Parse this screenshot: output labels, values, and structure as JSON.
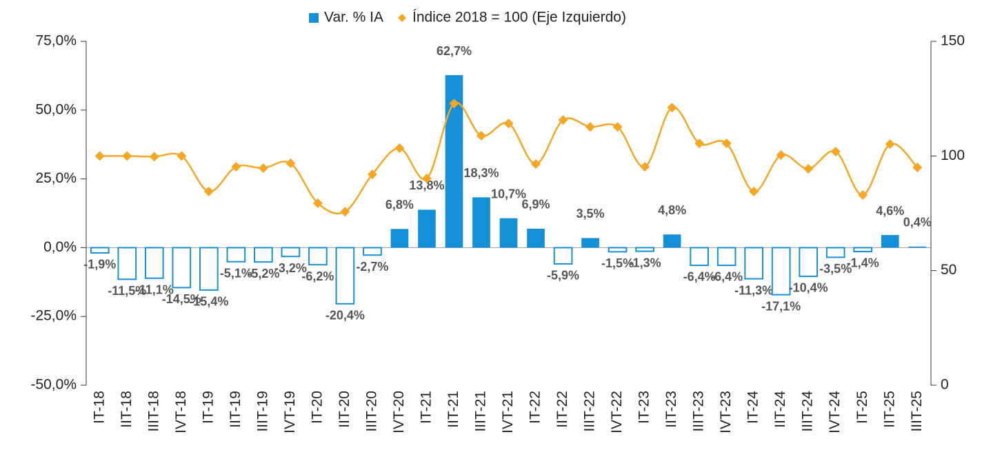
{
  "chart_data": {
    "type": "bar_line",
    "categories": [
      "IT-18",
      "IIT-18",
      "IIIT-18",
      "IVT-18",
      "IT-19",
      "IIT-19",
      "IIIT-19",
      "IVT-19",
      "IT-20",
      "IIT-20",
      "IIIT-20",
      "IVT-20",
      "IT-21",
      "IIT-21",
      "IIIT-21",
      "IVT-21",
      "IT-22",
      "IIT-22",
      "IIIT-22",
      "IVT-22",
      "IT-23",
      "IIT-23",
      "IIIT-23",
      "IVT-23",
      "IT-24",
      "IIT-24",
      "IIIT-24",
      "IVT-24",
      "IT-25",
      "IIT-25",
      "IIIT-25"
    ],
    "series": [
      {
        "name": "Var. % IA",
        "color": "#1590d8",
        "type": "bar",
        "values": [
          -1.9,
          -11.5,
          -11.1,
          -14.5,
          -15.4,
          -5.1,
          -5.2,
          -3.2,
          -6.2,
          -20.4,
          -2.7,
          6.8,
          13.8,
          62.7,
          18.3,
          10.7,
          6.9,
          -5.9,
          3.5,
          -1.5,
          -1.3,
          4.8,
          -6.4,
          -6.4,
          -11.3,
          -17.1,
          -10.4,
          -3.5,
          -1.4,
          4.6,
          0.4
        ],
        "value_labels": [
          "-1,9%",
          "-11,5%",
          "-11,1%",
          "-14,5%",
          "-15,4%",
          "-5,1%",
          "-5,2%",
          "-3,2%",
          "-6,2%",
          "-20,4%",
          "-2,7%",
          "6,8%",
          "13,8%",
          "62,7%",
          "18,3%",
          "10,7%",
          "6,9%",
          "-5,9%",
          "3,5%",
          "-1,5%",
          "-1,3%",
          "4,8%",
          "-6,4%",
          "-6,4%",
          "-11,3%",
          "-17,1%",
          "-10,4%",
          "-3,5%",
          "-1,4%",
          "4,6%",
          "0,4%"
        ]
      },
      {
        "name": "Índice 2018 = 100 (Eje Izquierdo)",
        "color": "#f5a623",
        "type": "line",
        "axis": "y2",
        "values": [
          100,
          100,
          99.7,
          100,
          84.5,
          95.3,
          94.7,
          96.8,
          79.4,
          75.7,
          92,
          103.4,
          90.2,
          122.9,
          108.8,
          114.2,
          96.5,
          115.7,
          112.7,
          112.7,
          95.3,
          121.1,
          105.5,
          105.5,
          84.5,
          100.4,
          94.4,
          101.9,
          83,
          105.2,
          95
        ]
      }
    ],
    "ylim": [
      -50,
      75
    ],
    "yticks": [
      {
        "value": -50,
        "label": "-50,0%"
      },
      {
        "value": -25,
        "label": "-25,0%"
      },
      {
        "value": 0,
        "label": "0,0%"
      },
      {
        "value": 25,
        "label": "25,0%"
      },
      {
        "value": 50,
        "label": "50,0%"
      },
      {
        "value": 75,
        "label": "75,0%"
      }
    ],
    "y2lim": [
      0,
      150
    ],
    "y2ticks": [
      0,
      50,
      100,
      150
    ],
    "legend": "top"
  }
}
